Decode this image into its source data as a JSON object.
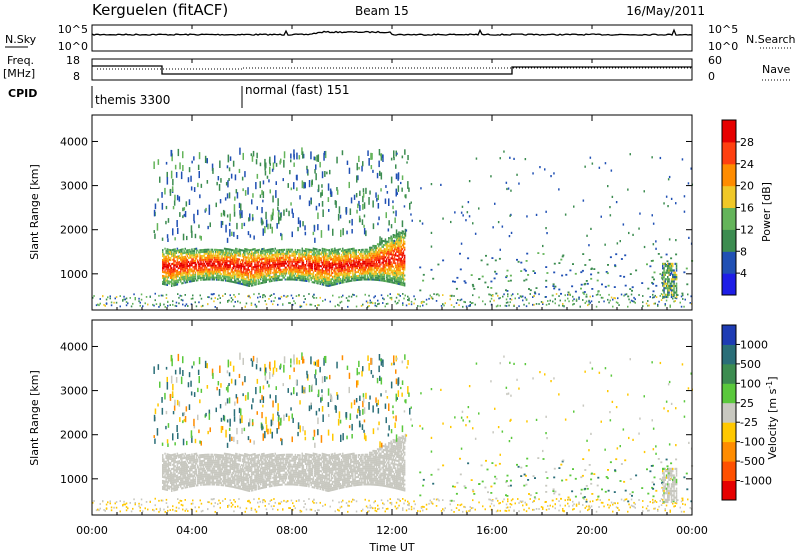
{
  "header": {
    "title": "Kerguelen (fitACF)",
    "beam": "Beam 15",
    "date": "16/May/2011"
  },
  "noise_panel": {
    "left_label": "N.Sky",
    "right_label": "N.Search",
    "left_ticks": [
      "10^5",
      "10^0"
    ],
    "right_ticks": [
      "10^5",
      "10^0"
    ]
  },
  "freq_panel": {
    "left_label_1": "Freq.",
    "left_label_2": "[MHz]",
    "right_label": "Nave",
    "left_ticks": [
      "18",
      "8"
    ],
    "right_ticks": [
      "60",
      "0"
    ]
  },
  "cpid_panel": {
    "label": "CPID",
    "modes": [
      {
        "text": "themis 3300",
        "start_hour": 0
      },
      {
        "text": "normal (fast) 151",
        "start_hour": 6
      }
    ]
  },
  "power_panel": {
    "ylabel": "Slant Range [km]",
    "yticks": [
      "1000",
      "2000",
      "3000",
      "4000"
    ],
    "colorbar_label": "Power [dB]",
    "colorbar_ticks": [
      "4",
      "8",
      "12",
      "16",
      "20",
      "24",
      "28"
    ],
    "colorbar_colors": [
      "#1e1ee6",
      "#2050b4",
      "#3c8c50",
      "#64b45a",
      "#f0c828",
      "#ff8c00",
      "#ff4010",
      "#e60000"
    ]
  },
  "velocity_panel": {
    "ylabel": "Slant Range [km]",
    "yticks": [
      "1000",
      "2000",
      "3000",
      "4000"
    ],
    "colorbar_label": "Velocity [m s^-1]",
    "colorbar_ticks": [
      "1000",
      "500",
      "100",
      "25",
      "-25",
      "-100",
      "-500",
      "-1000"
    ],
    "colorbar_colors": [
      "#1e3cb4",
      "#2a6e78",
      "#3c8c50",
      "#5ac83c",
      "#c8c8c0",
      "#ffc800",
      "#ff8c00",
      "#ff5000",
      "#e60000"
    ]
  },
  "x_axis": {
    "label": "Time UT",
    "ticks": [
      "00:00",
      "04:00",
      "08:00",
      "12:00",
      "16:00",
      "20:00",
      "00:00"
    ]
  },
  "chart_data": {
    "type": "heatmap",
    "title": "Kerguelen (fitACF)",
    "xlabel": "Time UT",
    "ylabel": "Slant Range [km]",
    "xlim_hours": [
      0,
      24
    ],
    "ylim_km": [
      180,
      4600
    ],
    "power_scale_db": [
      0,
      32
    ],
    "velocity_scale": [
      -1000,
      1000
    ],
    "scatter_regions": [
      {
        "name": "ground",
        "t0": 0,
        "t1": 24,
        "r0": 230,
        "r1": 520
      },
      {
        "name": "main_echo",
        "t0": 2.8,
        "t1": 12.6,
        "r0": 650,
        "r1": 1700
      },
      {
        "name": "upper_streaks",
        "t0": 2.3,
        "t1": 12.8,
        "r0": 1700,
        "r1": 3700
      },
      {
        "name": "night_patches",
        "t0": 13,
        "t1": 24,
        "r0": 450,
        "r1": 1400
      }
    ]
  }
}
